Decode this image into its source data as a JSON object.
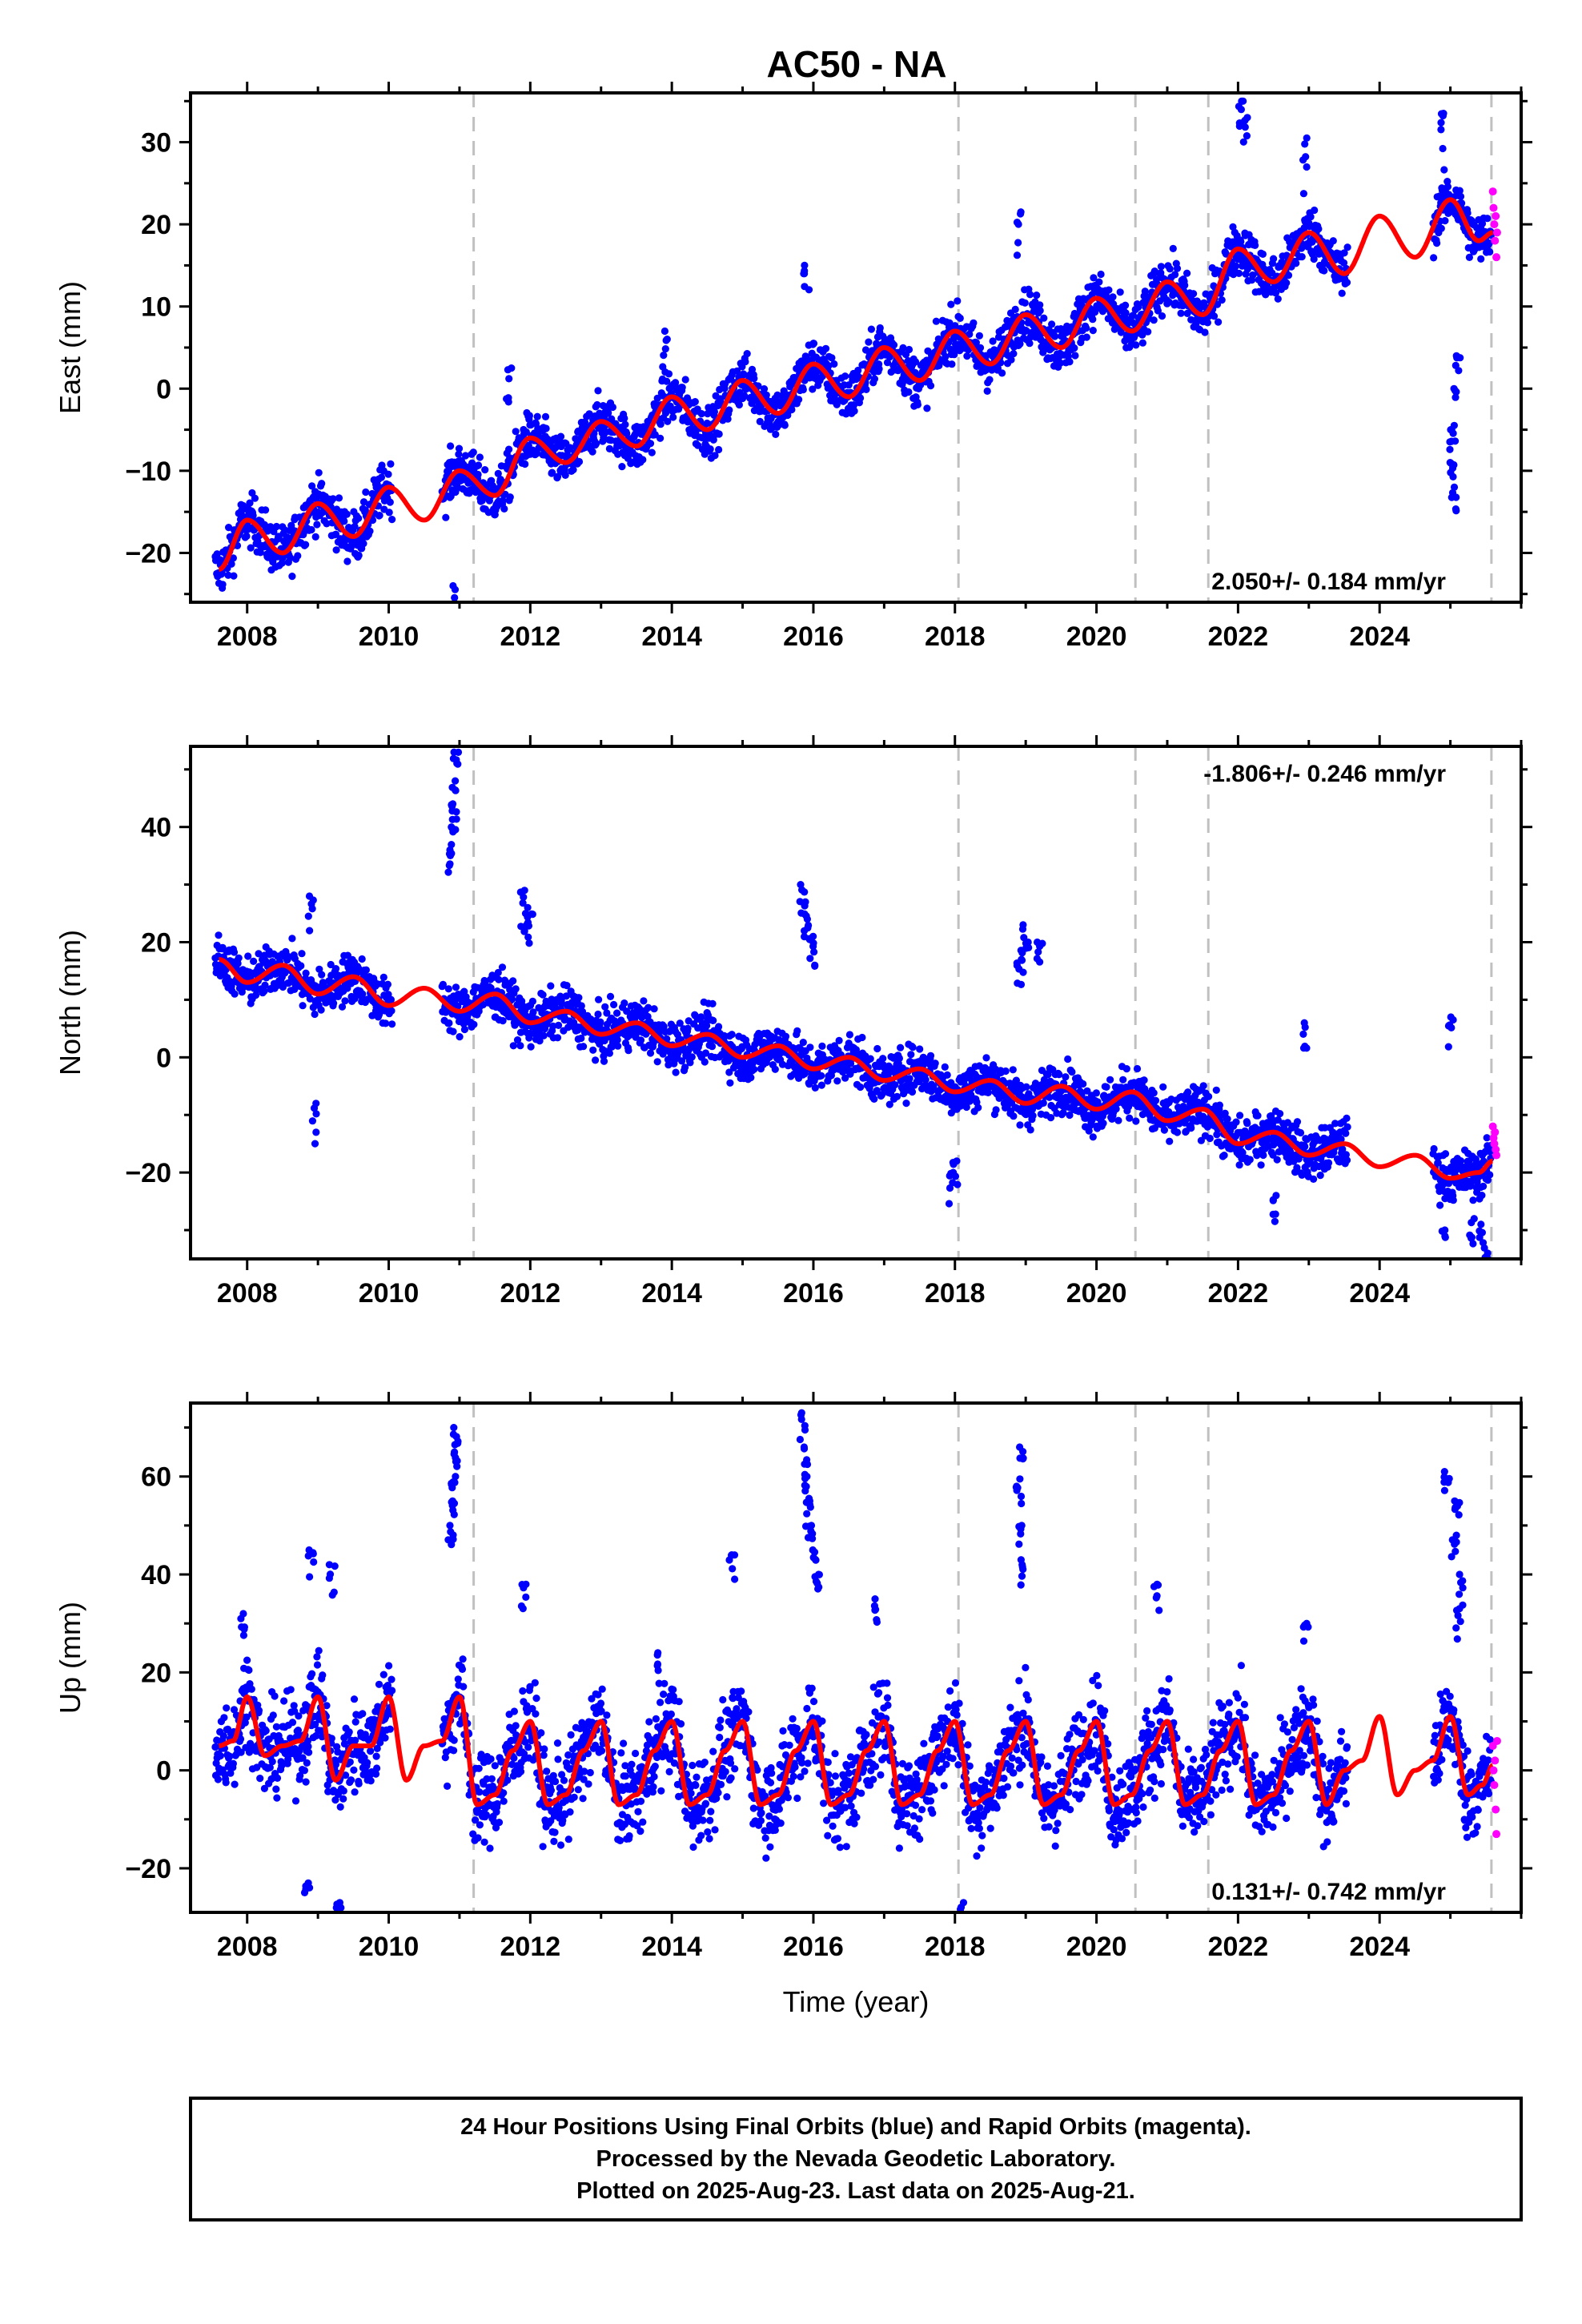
{
  "title": "AC50 - NA",
  "colors": {
    "final_orbits": "#0000ff",
    "rapid_orbits": "#ff00ff",
    "model_fit": "#ff0000",
    "event_lines": "#c0c0c0",
    "frame": "#000000"
  },
  "chart_data": [
    {
      "type": "scatter",
      "name": "east",
      "ylabel": "East (mm)",
      "xlabel": "",
      "xlim": [
        2007.2,
        2026.0
      ],
      "ylim": [
        -26,
        36
      ],
      "xticks": [
        2008,
        2010,
        2012,
        2014,
        2016,
        2018,
        2020,
        2022,
        2024
      ],
      "xtick_labels": [
        "2008",
        "2010",
        "2012",
        "2014",
        "2016",
        "2018",
        "2020",
        "2022",
        "2024"
      ],
      "yticks": [
        -20,
        -10,
        0,
        10,
        20,
        30
      ],
      "ytick_labels": [
        "−20",
        "−10",
        "0",
        "10",
        "20",
        "30"
      ],
      "rate_text": "2.050+/- 0.184 mm/yr",
      "rate_position": "bottom-right",
      "event_lines": [
        2011.2,
        2018.05,
        2020.55,
        2021.58,
        2025.58
      ],
      "model": {
        "x": [
          2007.6,
          2008.0,
          2008.5,
          2009.0,
          2009.5,
          2010.0,
          2010.5,
          2011.0,
          2011.5,
          2012.0,
          2012.5,
          2013.0,
          2013.5,
          2014.0,
          2014.5,
          2015.0,
          2015.5,
          2016.0,
          2016.5,
          2017.0,
          2017.5,
          2018.0,
          2018.5,
          2019.0,
          2019.5,
          2020.0,
          2020.5,
          2021.0,
          2021.5,
          2022.0,
          2022.5,
          2023.0,
          2023.5,
          2024.0,
          2024.5,
          2025.0,
          2025.4,
          2025.6
        ],
        "y": [
          -22,
          -16,
          -20,
          -14,
          -18,
          -12,
          -16,
          -10,
          -13,
          -6,
          -9,
          -4,
          -7,
          -1,
          -5,
          1,
          -3,
          3,
          -1,
          5,
          1,
          7,
          3,
          9,
          5,
          11,
          7,
          13,
          9,
          17,
          13,
          19,
          14,
          21,
          16,
          23,
          18,
          19
        ]
      },
      "scatter_x_range": [
        2007.55,
        2025.58
      ],
      "scatter_gaps": [
        [
          2010.05,
          2010.75
        ],
        [
          2023.55,
          2024.75
        ]
      ],
      "scatter_spread": 2.2,
      "outliers": [
        {
          "x": 2010.9,
          "y": -24
        },
        {
          "x": 2011.7,
          "y": 2.5
        },
        {
          "x": 2013.9,
          "y": 7
        },
        {
          "x": 2015.9,
          "y": 15
        },
        {
          "x": 2018.9,
          "y": 21.5
        },
        {
          "x": 2022.05,
          "y": 35
        },
        {
          "x": 2022.1,
          "y": 33
        },
        {
          "x": 2022.95,
          "y": 30.5
        },
        {
          "x": 2024.9,
          "y": 33.5
        },
        {
          "x": 2025.05,
          "y": -12
        },
        {
          "x": 2025.02,
          "y": -9
        },
        {
          "x": 2025.0,
          "y": -5
        },
        {
          "x": 2025.05,
          "y": 0
        },
        {
          "x": 2025.1,
          "y": 4
        }
      ],
      "rapid": {
        "x": [
          2025.6,
          2025.61,
          2025.62,
          2025.63,
          2025.64,
          2025.65,
          2025.66
        ],
        "y": [
          24,
          22,
          20,
          18,
          21,
          16,
          19
        ]
      }
    },
    {
      "type": "scatter",
      "name": "north",
      "ylabel": "North (mm)",
      "xlabel": "",
      "xlim": [
        2007.2,
        2026.0
      ],
      "ylim": [
        -35,
        54
      ],
      "xticks": [
        2008,
        2010,
        2012,
        2014,
        2016,
        2018,
        2020,
        2022,
        2024
      ],
      "xtick_labels": [
        "2008",
        "2010",
        "2012",
        "2014",
        "2016",
        "2018",
        "2020",
        "2022",
        "2024"
      ],
      "yticks": [
        -20,
        0,
        20,
        40
      ],
      "ytick_labels": [
        "−20",
        "0",
        "20",
        "40"
      ],
      "rate_text": "-1.806+/- 0.246 mm/yr",
      "rate_position": "top-right",
      "event_lines": [
        2011.2,
        2018.05,
        2020.55,
        2021.58,
        2025.58
      ],
      "model": {
        "x": [
          2007.6,
          2008.0,
          2008.5,
          2009.0,
          2009.5,
          2010.0,
          2010.5,
          2011.0,
          2011.5,
          2012.0,
          2012.5,
          2013.0,
          2013.5,
          2014.0,
          2014.5,
          2015.0,
          2015.5,
          2016.0,
          2016.5,
          2017.0,
          2017.5,
          2018.0,
          2018.5,
          2019.0,
          2019.5,
          2020.0,
          2020.5,
          2021.0,
          2021.5,
          2022.0,
          2022.5,
          2023.0,
          2023.5,
          2024.0,
          2024.5,
          2025.0,
          2025.4,
          2025.6
        ],
        "y": [
          17,
          13,
          16,
          11,
          14,
          9,
          12,
          8,
          11,
          6,
          8,
          4,
          6,
          2,
          4,
          0,
          2,
          -2,
          0,
          -4,
          -2,
          -6,
          -4,
          -8,
          -5,
          -9,
          -6,
          -11,
          -9,
          -15,
          -13,
          -17,
          -15,
          -19,
          -17,
          -21,
          -20,
          -18
        ]
      },
      "scatter_x_range": [
        2007.55,
        2025.58
      ],
      "scatter_gaps": [
        [
          2010.05,
          2010.75
        ],
        [
          2023.55,
          2024.75
        ]
      ],
      "scatter_spread": 3.0,
      "outliers": [
        {
          "x": 2010.95,
          "y": 53
        },
        {
          "x": 2010.93,
          "y": 48
        },
        {
          "x": 2010.92,
          "y": 44
        },
        {
          "x": 2010.9,
          "y": 40
        },
        {
          "x": 2010.88,
          "y": 36
        },
        {
          "x": 2011.9,
          "y": 29
        },
        {
          "x": 2012.0,
          "y": 26
        },
        {
          "x": 2011.95,
          "y": 23
        },
        {
          "x": 2008.9,
          "y": 28
        },
        {
          "x": 2008.95,
          "y": -8
        },
        {
          "x": 2015.85,
          "y": 30
        },
        {
          "x": 2015.9,
          "y": 27
        },
        {
          "x": 2015.95,
          "y": 24
        },
        {
          "x": 2016.0,
          "y": 21
        },
        {
          "x": 2017.95,
          "y": -20
        },
        {
          "x": 2018.0,
          "y": -18
        },
        {
          "x": 2018.95,
          "y": 23
        },
        {
          "x": 2019.0,
          "y": 20
        },
        {
          "x": 2018.9,
          "y": 17
        },
        {
          "x": 2019.2,
          "y": 20
        },
        {
          "x": 2022.5,
          "y": -24
        },
        {
          "x": 2022.95,
          "y": 6
        },
        {
          "x": 2024.9,
          "y": -30
        },
        {
          "x": 2025.0,
          "y": 7
        },
        {
          "x": 2025.5,
          "y": -34
        },
        {
          "x": 2025.45,
          "y": -29
        },
        {
          "x": 2025.3,
          "y": -28
        }
      ],
      "rapid": {
        "x": [
          2025.6,
          2025.61,
          2025.62,
          2025.63,
          2025.64,
          2025.65
        ],
        "y": [
          -12,
          -14,
          -15,
          -13,
          -16,
          -17
        ]
      }
    },
    {
      "type": "scatter",
      "name": "up",
      "ylabel": "Up (mm)",
      "xlabel": "Time (year)",
      "xlim": [
        2007.2,
        2026.0
      ],
      "ylim": [
        -29,
        75
      ],
      "xticks": [
        2008,
        2010,
        2012,
        2014,
        2016,
        2018,
        2020,
        2022,
        2024
      ],
      "xtick_labels": [
        "2008",
        "2010",
        "2012",
        "2014",
        "2016",
        "2018",
        "2020",
        "2022",
        "2024"
      ],
      "yticks": [
        -20,
        0,
        20,
        40,
        60
      ],
      "ytick_labels": [
        "−20",
        "0",
        "20",
        "40",
        "60"
      ],
      "rate_text": "0.131+/- 0.742 mm/yr",
      "rate_position": "bottom-right",
      "event_lines": [
        2011.2,
        2018.05,
        2020.55,
        2021.58,
        2025.58
      ],
      "model": {
        "x": [
          2007.6,
          2007.8,
          2008.0,
          2008.25,
          2008.5,
          2008.75,
          2009.0,
          2009.25,
          2009.5,
          2009.75,
          2010.0,
          2010.25,
          2010.5,
          2010.75,
          2011.0,
          2011.25,
          2011.5,
          2011.75,
          2012.0,
          2012.25,
          2012.5,
          2012.75,
          2013.0,
          2013.25,
          2013.5,
          2013.75,
          2014.0,
          2014.25,
          2014.5,
          2014.75,
          2015.0,
          2015.25,
          2015.5,
          2015.75,
          2016.0,
          2016.25,
          2016.5,
          2016.75,
          2017.0,
          2017.25,
          2017.5,
          2017.75,
          2018.0,
          2018.25,
          2018.5,
          2018.75,
          2019.0,
          2019.25,
          2019.5,
          2019.75,
          2020.0,
          2020.25,
          2020.5,
          2020.75,
          2021.0,
          2021.25,
          2021.5,
          2021.75,
          2022.0,
          2022.25,
          2022.5,
          2022.75,
          2023.0,
          2023.25,
          2023.5,
          2023.75,
          2024.0,
          2024.25,
          2024.5,
          2024.75,
          2025.0,
          2025.25,
          2025.45,
          2025.6
        ],
        "y": [
          5,
          6,
          15,
          3,
          5,
          6,
          15,
          -2,
          5,
          5,
          15,
          -2,
          5,
          6,
          15,
          -7,
          -5,
          4,
          10,
          -7,
          -5,
          4,
          10,
          -7,
          -5,
          4,
          10,
          -7,
          -5,
          4,
          10,
          -7,
          -5,
          4,
          10,
          -7,
          -5,
          4,
          10,
          -7,
          -5,
          4,
          10,
          -7,
          -5,
          4,
          10,
          -7,
          -5,
          4,
          10,
          -7,
          -5,
          4,
          10,
          -7,
          -5,
          4,
          10,
          -7,
          -5,
          4,
          10,
          -7,
          0,
          2,
          11,
          -5,
          0,
          2,
          11,
          -5,
          -3,
          1
        ]
      },
      "scatter_x_range": [
        2007.55,
        2025.58
      ],
      "scatter_gaps": [
        [
          2010.05,
          2010.75
        ],
        [
          2023.55,
          2024.75
        ]
      ],
      "scatter_spread": 6.5,
      "outliers": [
        {
          "x": 2010.95,
          "y": 70
        },
        {
          "x": 2010.93,
          "y": 65
        },
        {
          "x": 2010.91,
          "y": 60
        },
        {
          "x": 2010.9,
          "y": 55
        },
        {
          "x": 2010.88,
          "y": 50
        },
        {
          "x": 2008.9,
          "y": 45
        },
        {
          "x": 2009.2,
          "y": 42
        },
        {
          "x": 2009.3,
          "y": -27
        },
        {
          "x": 2007.95,
          "y": 32
        },
        {
          "x": 2008.85,
          "y": -23
        },
        {
          "x": 2011.9,
          "y": 38
        },
        {
          "x": 2014.85,
          "y": 44
        },
        {
          "x": 2015.85,
          "y": 73
        },
        {
          "x": 2015.88,
          "y": 66
        },
        {
          "x": 2015.9,
          "y": 60
        },
        {
          "x": 2015.92,
          "y": 55
        },
        {
          "x": 2015.95,
          "y": 50
        },
        {
          "x": 2016.0,
          "y": 45
        },
        {
          "x": 2016.05,
          "y": 40
        },
        {
          "x": 2018.95,
          "y": 66
        },
        {
          "x": 2018.9,
          "y": 58
        },
        {
          "x": 2018.92,
          "y": 50
        },
        {
          "x": 2018.97,
          "y": 43
        },
        {
          "x": 2020.85,
          "y": 38
        },
        {
          "x": 2024.95,
          "y": 61
        },
        {
          "x": 2025.1,
          "y": 55
        },
        {
          "x": 2025.05,
          "y": 48
        },
        {
          "x": 2025.15,
          "y": 40
        },
        {
          "x": 2025.12,
          "y": 33
        },
        {
          "x": 2018.1,
          "y": -27
        },
        {
          "x": 2016.9,
          "y": 35
        },
        {
          "x": 2013.8,
          "y": 24
        },
        {
          "x": 2022.95,
          "y": 30
        }
      ],
      "rapid": {
        "x": [
          2025.6,
          2025.61,
          2025.62,
          2025.63,
          2025.64,
          2025.65,
          2025.66
        ],
        "y": [
          5,
          0,
          -3,
          2,
          -8,
          -13,
          6
        ]
      }
    }
  ],
  "footer": {
    "line1": "24 Hour Positions Using Final Orbits (blue) and Rapid Orbits (magenta).",
    "line2": "Processed by the Nevada Geodetic Laboratory.",
    "line3": "Plotted on 2025-Aug-23. Last data on 2025-Aug-21."
  }
}
